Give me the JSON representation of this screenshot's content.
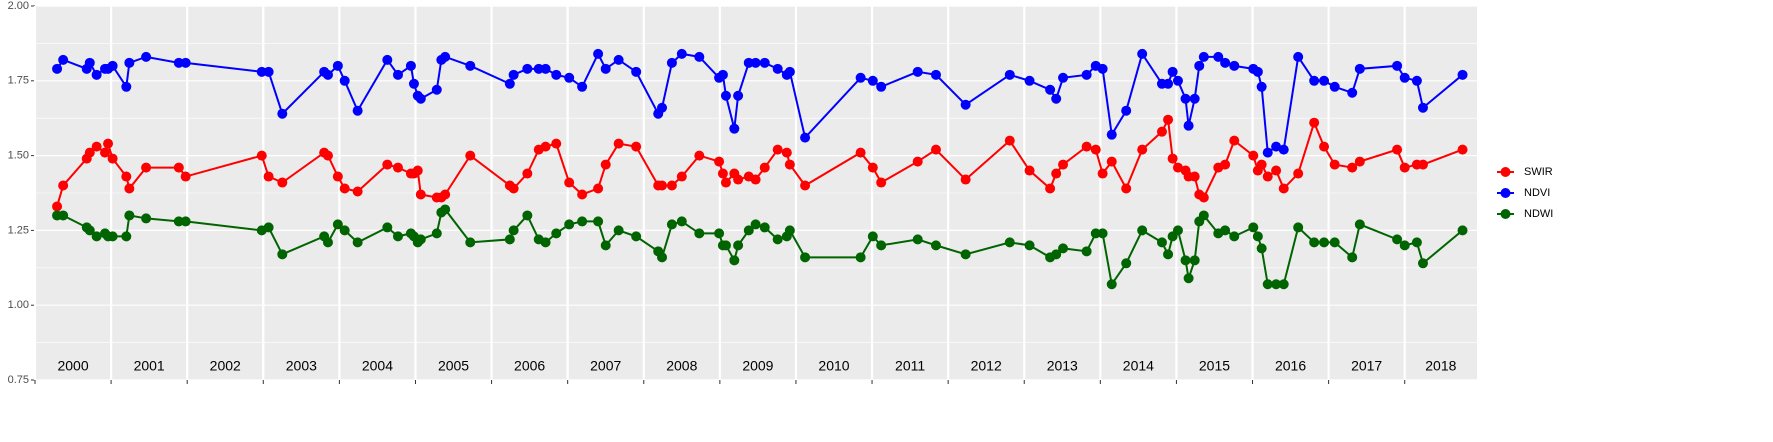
{
  "chart_data": {
    "type": "line",
    "x": [
      2000.29,
      2000.37,
      2000.68,
      2000.72,
      2000.81,
      2000.92,
      2000.96,
      2001.02,
      2001.2,
      2001.24,
      2001.46,
      2001.89,
      2001.98,
      2002.98,
      2003.07,
      2003.25,
      2003.8,
      2003.85,
      2003.98,
      2004.07,
      2004.24,
      2004.63,
      2004.77,
      2004.94,
      2004.98,
      2005.03,
      2005.07,
      2005.28,
      2005.34,
      2005.39,
      2005.72,
      2006.24,
      2006.29,
      2006.47,
      2006.62,
      2006.71,
      2006.85,
      2007.02,
      2007.19,
      2007.4,
      2007.5,
      2007.67,
      2007.9,
      2008.19,
      2008.24,
      2008.37,
      2008.5,
      2008.73,
      2008.99,
      2009.04,
      2009.08,
      2009.19,
      2009.24,
      2009.38,
      2009.47,
      2009.59,
      2009.76,
      2009.88,
      2009.92,
      2010.12,
      2010.85,
      2011.01,
      2011.12,
      2011.6,
      2011.84,
      2012.23,
      2012.81,
      2013.07,
      2013.34,
      2013.42,
      2013.51,
      2013.82,
      2013.94,
      2014.03,
      2014.15,
      2014.34,
      2014.55,
      2014.81,
      2014.89,
      2014.95,
      2015.02,
      2015.12,
      2015.16,
      2015.24,
      2015.3,
      2015.36,
      2015.55,
      2015.64,
      2015.76,
      2016.01,
      2016.07,
      2016.12,
      2016.2,
      2016.31,
      2016.41,
      2016.6,
      2016.81,
      2016.94,
      2017.08,
      2017.31,
      2017.41,
      2017.9,
      2018.0,
      2018.16,
      2018.24,
      2018.76
    ],
    "series": [
      {
        "name": "SWIR",
        "color": "#ff0000",
        "values": [
          1.33,
          1.4,
          1.49,
          1.51,
          1.53,
          1.51,
          1.54,
          1.49,
          1.43,
          1.39,
          1.46,
          1.46,
          1.43,
          1.5,
          1.43,
          1.41,
          1.51,
          1.5,
          1.43,
          1.39,
          1.38,
          1.47,
          1.46,
          1.44,
          1.44,
          1.45,
          1.37,
          1.36,
          1.36,
          1.37,
          1.5,
          1.4,
          1.39,
          1.44,
          1.52,
          1.53,
          1.54,
          1.41,
          1.37,
          1.39,
          1.47,
          1.54,
          1.53,
          1.4,
          1.4,
          1.4,
          1.43,
          1.5,
          1.48,
          1.44,
          1.41,
          1.44,
          1.42,
          1.43,
          1.42,
          1.46,
          1.52,
          1.51,
          1.47,
          1.4,
          1.51,
          1.46,
          1.41,
          1.48,
          1.52,
          1.42,
          1.55,
          1.45,
          1.39,
          1.44,
          1.47,
          1.53,
          1.52,
          1.44,
          1.48,
          1.39,
          1.52,
          1.58,
          1.62,
          1.49,
          1.46,
          1.45,
          1.43,
          1.43,
          1.37,
          1.36,
          1.46,
          1.47,
          1.55,
          1.5,
          1.45,
          1.47,
          1.43,
          1.45,
          1.39,
          1.44,
          1.61,
          1.53,
          1.47,
          1.46,
          1.48,
          1.52,
          1.46,
          1.47,
          1.47,
          1.52
        ]
      },
      {
        "name": "NDVI",
        "color": "#0000ff",
        "values": [
          1.79,
          1.82,
          1.79,
          1.81,
          1.77,
          1.79,
          1.79,
          1.8,
          1.73,
          1.81,
          1.83,
          1.81,
          1.81,
          1.78,
          1.78,
          1.64,
          1.78,
          1.77,
          1.8,
          1.75,
          1.65,
          1.82,
          1.77,
          1.8,
          1.74,
          1.7,
          1.69,
          1.72,
          1.82,
          1.83,
          1.8,
          1.74,
          1.77,
          1.79,
          1.79,
          1.79,
          1.77,
          1.76,
          1.73,
          1.84,
          1.79,
          1.82,
          1.78,
          1.64,
          1.66,
          1.81,
          1.84,
          1.83,
          1.76,
          1.77,
          1.7,
          1.59,
          1.7,
          1.81,
          1.81,
          1.81,
          1.79,
          1.77,
          1.78,
          1.56,
          1.76,
          1.75,
          1.73,
          1.78,
          1.77,
          1.67,
          1.77,
          1.75,
          1.72,
          1.69,
          1.76,
          1.77,
          1.8,
          1.79,
          1.57,
          1.65,
          1.84,
          1.74,
          1.74,
          1.78,
          1.75,
          1.69,
          1.6,
          1.69,
          1.8,
          1.83,
          1.83,
          1.81,
          1.8,
          1.79,
          1.78,
          1.73,
          1.51,
          1.53,
          1.52,
          1.83,
          1.75,
          1.75,
          1.73,
          1.71,
          1.79,
          1.8,
          1.76,
          1.75,
          1.66,
          1.77
        ]
      },
      {
        "name": "NDWI",
        "color": "#006400",
        "values": [
          1.3,
          1.3,
          1.26,
          1.25,
          1.23,
          1.24,
          1.23,
          1.23,
          1.23,
          1.3,
          1.29,
          1.28,
          1.28,
          1.25,
          1.26,
          1.17,
          1.23,
          1.21,
          1.27,
          1.25,
          1.21,
          1.26,
          1.23,
          1.24,
          1.23,
          1.21,
          1.22,
          1.24,
          1.31,
          1.32,
          1.21,
          1.22,
          1.25,
          1.3,
          1.22,
          1.21,
          1.24,
          1.27,
          1.28,
          1.28,
          1.2,
          1.25,
          1.23,
          1.18,
          1.16,
          1.27,
          1.28,
          1.24,
          1.24,
          1.2,
          1.2,
          1.15,
          1.2,
          1.25,
          1.27,
          1.26,
          1.22,
          1.23,
          1.25,
          1.16,
          1.16,
          1.23,
          1.2,
          1.22,
          1.2,
          1.17,
          1.21,
          1.2,
          1.16,
          1.17,
          1.19,
          1.18,
          1.24,
          1.24,
          1.07,
          1.14,
          1.25,
          1.21,
          1.17,
          1.23,
          1.25,
          1.15,
          1.09,
          1.15,
          1.28,
          1.3,
          1.24,
          1.25,
          1.23,
          1.26,
          1.23,
          1.19,
          1.07,
          1.07,
          1.07,
          1.26,
          1.21,
          1.21,
          1.21,
          1.16,
          1.27,
          1.22,
          1.2,
          1.21,
          1.14,
          1.25
        ]
      }
    ],
    "xlim": [
      2000,
      2018.95
    ],
    "xticks": [
      2000,
      2001,
      2002,
      2003,
      2004,
      2005,
      2006,
      2007,
      2008,
      2009,
      2010,
      2011,
      2012,
      2013,
      2014,
      2015,
      2016,
      2017,
      2018
    ],
    "ylim": [
      0.75,
      2.0
    ],
    "yticks": [
      0.75,
      {
        "value": 1.0,
        "label": "1.00"
      },
      1.25,
      {
        "value": 1.5,
        "label": "1.50"
      },
      1.75,
      {
        "value": 2.0,
        "label": "2.00"
      }
    ],
    "grid": true,
    "legend": "right"
  }
}
